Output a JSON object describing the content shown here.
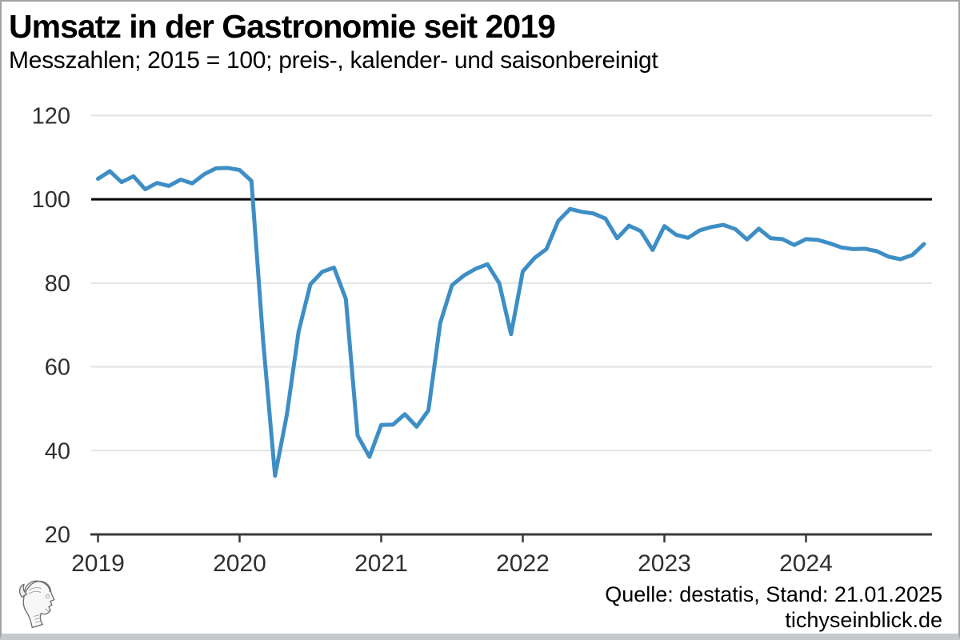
{
  "header": {
    "title": "Umsatz in der Gastronomie seit 2019",
    "subtitle": "Messzahlen; 2015 = 100; preis-, kalender- und saisonbereinigt"
  },
  "footer": {
    "source": "Quelle: destatis, Stand: 21.01.2025",
    "website": "tichyseinblick.de"
  },
  "chart_data": {
    "type": "line",
    "title": "Umsatz in der Gastronomie seit 2019",
    "subtitle": "Messzahlen; 2015 = 100; preis-, kalender- und saisonbereinigt",
    "frequency": "monthly",
    "x_start": "2019-01",
    "x_end": "2024-11",
    "x_tick_labels": [
      "2019",
      "2020",
      "2021",
      "2022",
      "2023",
      "2024"
    ],
    "y_ticks": [
      20,
      40,
      60,
      80,
      100,
      120
    ],
    "ylim": [
      20,
      120
    ],
    "baseline_value": 100,
    "grid": "horizontal",
    "legend": "none",
    "line_color": "#3E8EC6",
    "axis_color": "#3a3a3a",
    "gridline_color": "#e2e2e2",
    "baseline_color": "#000000",
    "values": [
      104.9,
      106.7,
      104.1,
      105.5,
      102.4,
      103.9,
      103.2,
      104.7,
      103.8,
      106.0,
      107.4,
      107.5,
      107.0,
      104.4,
      66.0,
      34.0,
      48.5,
      68.5,
      79.7,
      82.7,
      83.7,
      76.2,
      43.6,
      38.5,
      46.1,
      46.2,
      48.7,
      45.7,
      49.6,
      70.5,
      79.5,
      81.8,
      83.4,
      84.5,
      80.0,
      67.8,
      82.8,
      86.0,
      88.1,
      94.8,
      97.7,
      97.0,
      96.6,
      95.4,
      90.7,
      93.7,
      92.4,
      87.9,
      93.6,
      91.5,
      90.8,
      92.6,
      93.4,
      93.9,
      92.9,
      90.4,
      93.0,
      90.7,
      90.5,
      89.1,
      90.5,
      90.3,
      89.5,
      88.5,
      88.1,
      88.2,
      87.6,
      86.3,
      85.7,
      86.7,
      89.3
    ]
  }
}
